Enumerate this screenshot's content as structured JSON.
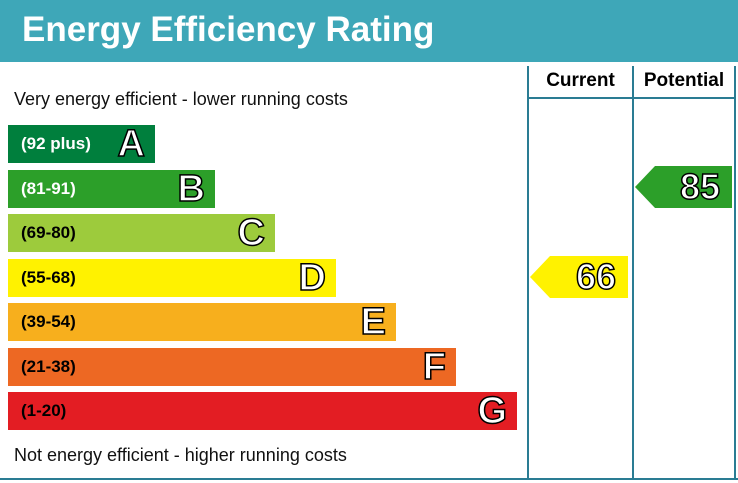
{
  "title": "Energy Efficiency Rating",
  "top_note": "Very energy efficient - lower running costs",
  "bottom_note": "Not energy efficient - higher running costs",
  "columns": {
    "current": "Current",
    "potential": "Potential"
  },
  "chart_data": {
    "type": "bar",
    "bands": [
      {
        "range": "(92 plus)",
        "letter": "A",
        "color": "#007f3d",
        "text_color": "#ffffff"
      },
      {
        "range": "(81-91)",
        "letter": "B",
        "color": "#2c9f29",
        "text_color": "#ffffff"
      },
      {
        "range": "(69-80)",
        "letter": "C",
        "color": "#9dcb3c",
        "text_color": "#000000"
      },
      {
        "range": "(55-68)",
        "letter": "D",
        "color": "#fff200",
        "text_color": "#000000"
      },
      {
        "range": "(39-54)",
        "letter": "E",
        "color": "#f7af1d",
        "text_color": "#000000"
      },
      {
        "range": "(21-38)",
        "letter": "F",
        "color": "#ed6823",
        "text_color": "#000000"
      },
      {
        "range": "(1-20)",
        "letter": "G",
        "color": "#e31d23",
        "text_color": "#000000"
      }
    ],
    "current": {
      "value": "66",
      "band": "D",
      "color": "#fff200"
    },
    "potential": {
      "value": "85",
      "band": "B",
      "color": "#2c9f29"
    }
  }
}
